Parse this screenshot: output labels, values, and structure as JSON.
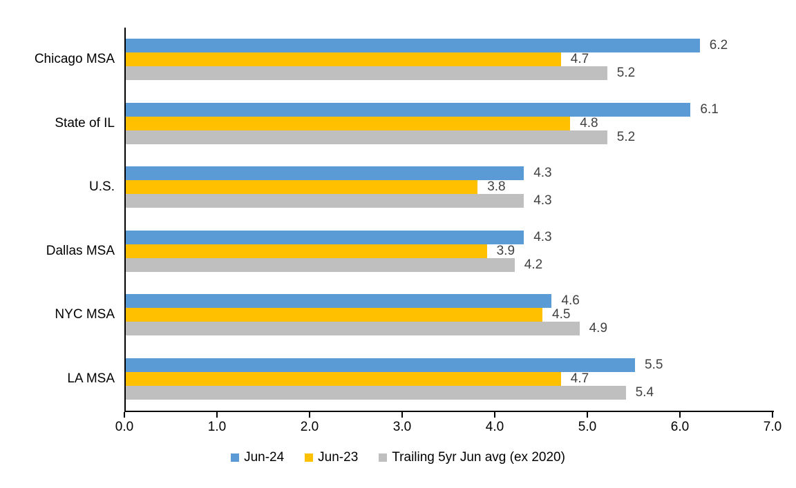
{
  "chart_data": {
    "type": "bar",
    "orientation": "horizontal",
    "title": "",
    "categories": [
      "Chicago MSA",
      "State of IL",
      "U.S.",
      "Dallas MSA",
      "NYC MSA",
      "LA MSA"
    ],
    "series": [
      {
        "name": "Jun-24",
        "color": "#5B9BD5",
        "values": [
          6.2,
          6.1,
          4.3,
          4.3,
          4.6,
          5.5
        ]
      },
      {
        "name": "Jun-23",
        "color": "#FFC000",
        "values": [
          4.7,
          4.8,
          3.8,
          3.9,
          4.5,
          4.7
        ]
      },
      {
        "name": "Trailing 5yr Jun avg (ex 2020)",
        "color": "#BFBFBF",
        "values": [
          5.2,
          5.2,
          4.3,
          4.2,
          4.9,
          5.4
        ]
      }
    ],
    "x_axis": {
      "min": 0,
      "max": 7,
      "step": 1,
      "tick_labels": [
        "0.0",
        "1.0",
        "2.0",
        "3.0",
        "4.0",
        "5.0",
        "6.0",
        "7.0"
      ]
    },
    "data_label_color": "#404040",
    "axis_color": "#000000",
    "grid": false,
    "legend_position": "bottom"
  }
}
